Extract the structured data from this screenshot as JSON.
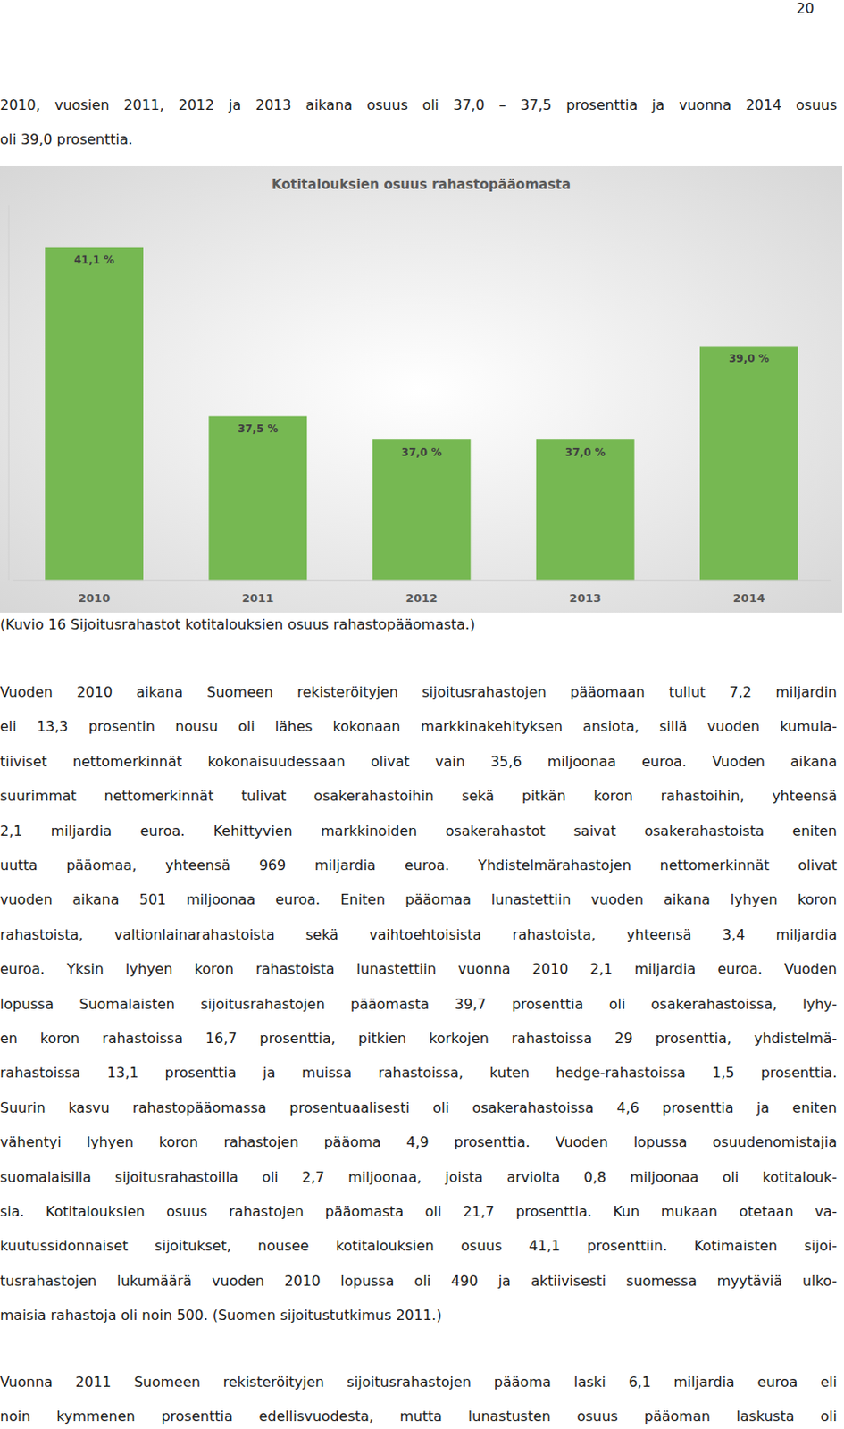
{
  "page": {
    "number": "20",
    "paragraphs": [
      [
        "2010, vuosien 2011, 2012 ja 2013 aikana osuus oli 37,0 – 37,5 prosenttia ja vuonna 2014 osuus",
        "oli 39,0 prosenttia."
      ],
      [
        "Vuoden 2010 aikana Suomeen rekisteröityjen sijoitusrahastojen pääomaan tullut 7,2 miljardin",
        "eli 13,3 prosentin nousu oli lähes kokonaan markkinakehityksen ansiota, sillä vuoden kumula-",
        "tiiviset nettomerkinnät kokonaisuudessaan olivat vain 35,6 miljoonaa euroa. Vuoden aikana",
        "suurimmat nettomerkinnät tulivat osakerahastoihin sekä pitkän koron rahastoihin, yhteensä",
        "2,1 miljardia euroa. Kehittyvien markkinoiden osakerahastot saivat osakerahastoista eniten",
        "uutta pääomaa, yhteensä 969 miljardia euroa. Yhdistelmärahastojen nettomerkinnät olivat",
        "vuoden aikana 501 miljoonaa euroa. Eniten pääomaa lunastettiin vuoden aikana lyhyen koron",
        "rahastoista, valtionlainarahastoista sekä vaihtoehtoisista rahastoista, yhteensä 3,4 miljardia",
        "euroa. Yksin lyhyen koron rahastoista lunastettiin vuonna 2010 2,1 miljardia euroa. Vuoden",
        "lopussa Suomalaisten sijoitusrahastojen pääomasta 39,7 prosenttia oli osakerahastoissa, lyhy-",
        "en koron rahastoissa 16,7 prosenttia, pitkien korkojen rahastoissa 29 prosenttia, yhdistelmä-",
        "rahastoissa 13,1 prosenttia ja muissa rahastoissa, kuten hedge-rahastoissa 1,5 prosenttia.",
        "Suurin kasvu rahastopääomassa prosentuaalisesti oli osakerahastoissa 4,6 prosenttia ja eniten",
        "vähentyi lyhyen koron rahastojen pääoma 4,9 prosenttia. Vuoden lopussa osuudenomistajia",
        "suomalaisilla sijoitusrahastoilla oli 2,7 miljoonaa, joista arviolta 0,8 miljoonaa oli kotitalouk-",
        "sia. Kotitalouksien osuus rahastojen pääomasta oli 21,7 prosenttia. Kun mukaan otetaan va-",
        "kuutussidonnaiset sijoitukset, nousee kotitalouksien osuus 41,1 prosenttiin. Kotimaisten sijoi-",
        "tusrahastojen lukumäärä vuoden 2010 lopussa oli 490 ja aktiivisesti suomessa myytäviä ulko-",
        "maisia rahastoja oli noin 500. (Suomen sijoitustutkimus 2011.)"
      ],
      [
        "Vuonna 2011 Suomeen rekisteröityjen sijoitusrahastojen pääoma laski 6,1 miljardia euroa eli",
        "noin kymmenen prosenttia edellisvuodesta, mutta lunastusten osuus pääoman laskusta oli"
      ]
    ],
    "caption": "(Kuvio 16 Sijoitusrahastot kotitalouksien osuus rahastopääomasta.)"
  },
  "chart_data": {
    "type": "bar",
    "title": "Kotitalouksien osuus rahastopääomasta",
    "categories": [
      "2010",
      "2011",
      "2012",
      "2013",
      "2014"
    ],
    "values": [
      41.1,
      37.5,
      37.0,
      37.0,
      39.0
    ],
    "value_labels": [
      "41,1 %",
      "37,5 %",
      "37,0 %",
      "37,0 %",
      "39,0 %"
    ],
    "color": "#76b852",
    "ylim": [
      34,
      42
    ],
    "data_labels": true,
    "tick_labels": "x",
    "grid": false
  }
}
